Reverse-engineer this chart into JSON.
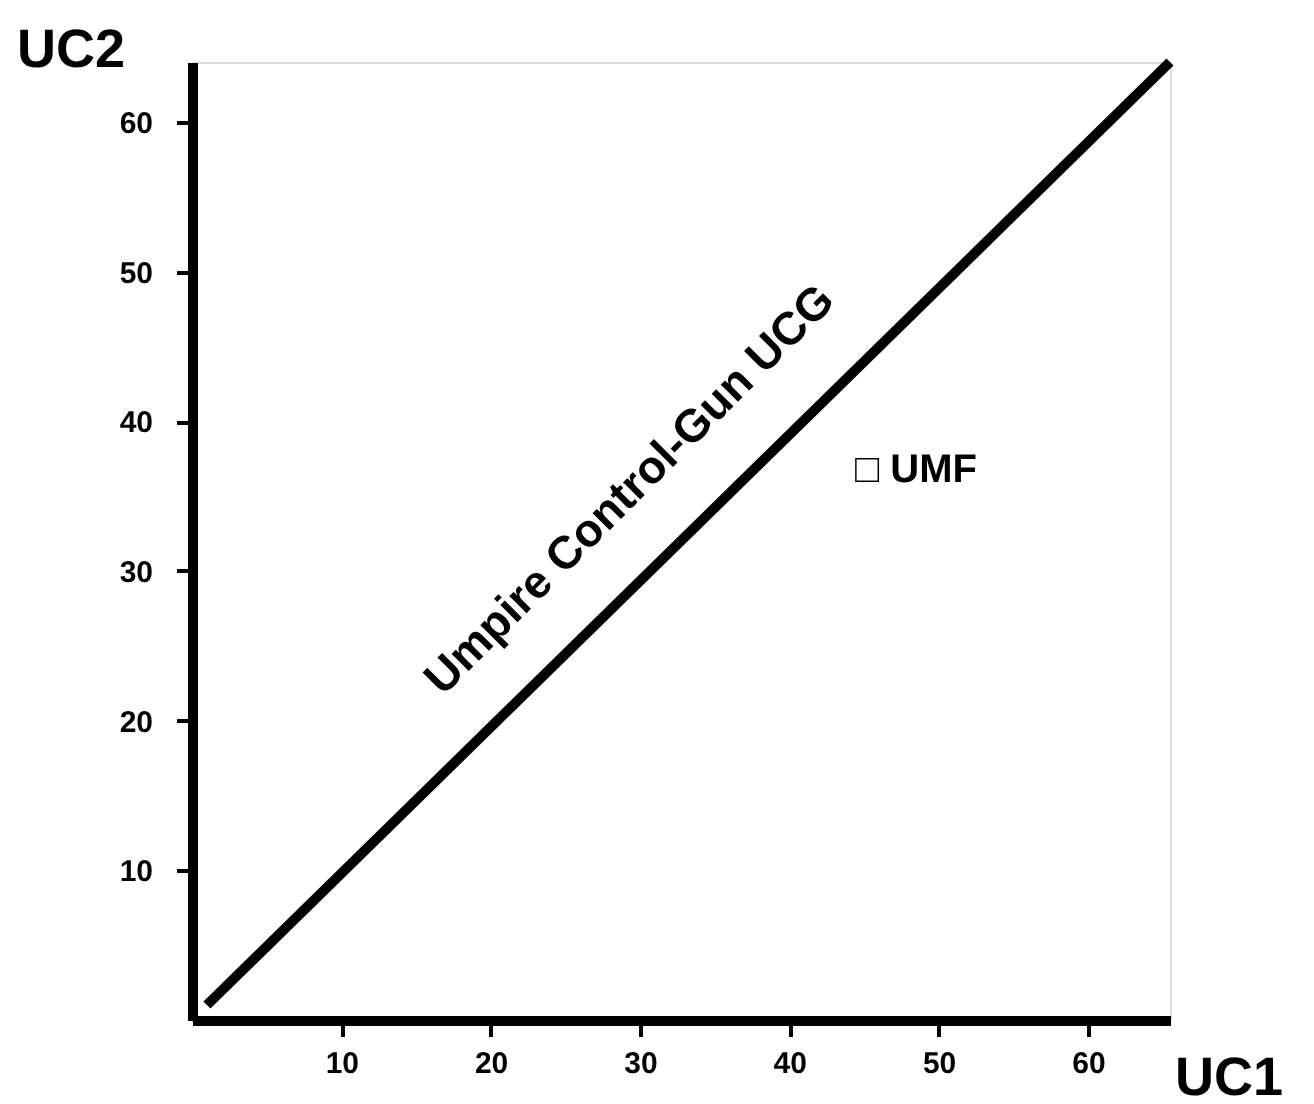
{
  "chart_data": {
    "type": "line",
    "xlabel": "UC1",
    "ylabel": "UC2",
    "x": [
      1,
      65.5
    ],
    "series": [
      {
        "color": "#000000",
        "values": [
          1,
          64
        ]
      }
    ],
    "xlim": [
      0,
      65.5
    ],
    "ylim": [
      0,
      64
    ],
    "xticks": [
      10,
      20,
      30,
      40,
      50,
      60
    ],
    "yticks": [
      10,
      20,
      30,
      40,
      50,
      60
    ],
    "grid": false,
    "annotations": [
      "Umpire Control-Gun UCG",
      "□ UMF"
    ]
  }
}
